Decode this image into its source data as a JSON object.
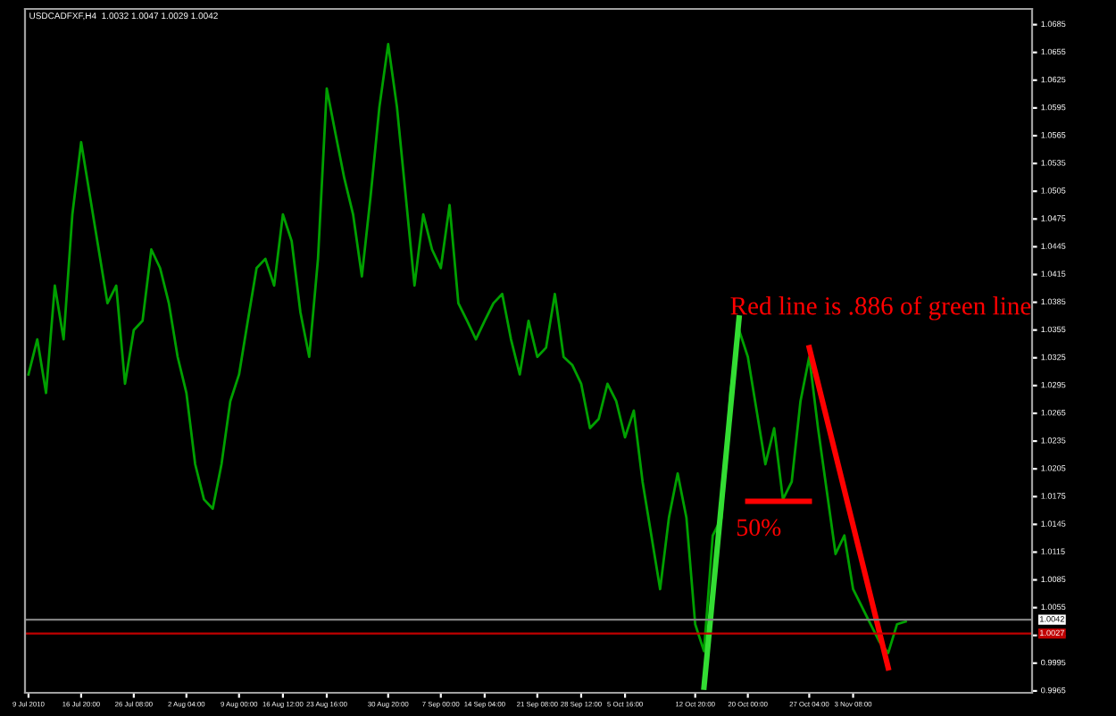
{
  "chart_data": {
    "type": "line",
    "title": "USDCADFXF,H4  1.0032 1.0047 1.0029 1.0042",
    "grid": false,
    "legend": false,
    "marker": "none",
    "line_style": "solid",
    "categories": [
      "9 Jul 2010",
      null,
      null,
      null,
      null,
      null,
      "16 Jul 20:00",
      null,
      null,
      null,
      null,
      null,
      "26 Jul 08:00",
      null,
      null,
      null,
      null,
      null,
      "2 Aug 04:00",
      null,
      null,
      null,
      null,
      null,
      "9 Aug 00:00",
      null,
      null,
      null,
      null,
      "16 Aug 12:00",
      null,
      null,
      null,
      null,
      "23 Aug 16:00",
      null,
      null,
      null,
      null,
      null,
      null,
      "30 Aug 20:00",
      null,
      null,
      null,
      null,
      null,
      "7 Sep 00:00",
      null,
      null,
      null,
      null,
      "14 Sep 04:00",
      null,
      null,
      null,
      null,
      null,
      "21 Sep 08:00",
      null,
      null,
      null,
      null,
      "28 Sep 12:00",
      null,
      null,
      null,
      null,
      "5 Oct 16:00",
      null,
      null,
      null,
      null,
      null,
      null,
      null,
      "12 Oct 20:00",
      null,
      null,
      null,
      null,
      null,
      "20 Oct 00:00",
      null,
      null,
      null,
      null,
      null,
      null,
      "27 Oct 04:00",
      null,
      null,
      null,
      null,
      "3 Nov 08:00",
      null,
      null,
      null,
      null,
      null,
      null,
      null,
      null,
      null,
      null,
      null,
      null,
      null,
      null,
      null,
      null,
      null,
      null,
      null,
      null
    ],
    "ylim": [
      0.9963,
      1.0702
    ],
    "yticks": [
      1.0685,
      1.0655,
      1.0625,
      1.0595,
      1.0565,
      1.0535,
      1.0505,
      1.0475,
      1.0445,
      1.0415,
      1.0385,
      1.0355,
      1.0325,
      1.0295,
      1.0265,
      1.0235,
      1.0205,
      1.0175,
      1.0145,
      1.0115,
      1.0085,
      1.0055,
      1.0025,
      0.9995,
      0.9965
    ],
    "series": [
      {
        "color": "#00a000",
        "values": [
          1.0307,
          1.0345,
          1.0287,
          1.0403,
          1.0345,
          1.048,
          1.0558,
          1.05,
          1.0442,
          1.0384,
          1.0403,
          1.0297,
          1.0355,
          1.0365,
          1.0442,
          1.0422,
          1.0384,
          1.0326,
          1.0287,
          1.021,
          1.0172,
          1.0162,
          1.021,
          1.0278,
          1.0307,
          1.0365,
          1.0422,
          1.0432,
          1.0403,
          1.048,
          1.0451,
          1.0374,
          1.0326,
          1.0432,
          1.0616,
          1.0567,
          1.0519,
          1.048,
          1.0413,
          1.05,
          1.0596,
          1.0664,
          1.0596,
          1.05,
          1.0403,
          1.048,
          1.0442,
          1.0422,
          1.049,
          1.0384,
          1.0365,
          1.0345,
          1.0365,
          1.0384,
          1.0394,
          1.0345,
          1.0307,
          1.0365,
          1.0326,
          1.0336,
          1.0394,
          1.0326,
          1.0317,
          1.0297,
          1.0249,
          1.0259,
          1.0297,
          1.0278,
          1.0239,
          1.0268,
          1.0191,
          1.0133,
          1.0075,
          1.0152,
          1.02,
          1.0152,
          1.0037,
          1.0008,
          1.0133,
          1.0152,
          1.0287,
          1.0355,
          1.0326,
          1.0268,
          1.021,
          1.0249,
          1.0172,
          1.0191,
          1.0278,
          1.0326,
          1.0249,
          1.0181,
          1.0113,
          1.0133,
          1.0075,
          1.0056,
          1.0037,
          1.0018,
          1.0006,
          1.0037,
          1.004,
          null,
          null,
          null,
          null,
          null,
          null,
          null,
          null,
          null,
          null,
          null,
          null,
          null,
          null
        ]
      },
      {
        "color": "#33dd33",
        "values": [
          null,
          null,
          null,
          null,
          null,
          null,
          null,
          null,
          null,
          null,
          null,
          null,
          null,
          null,
          null,
          null,
          null,
          null,
          null,
          null,
          null,
          null,
          null,
          null,
          null,
          null,
          null,
          null,
          null,
          null,
          null,
          null,
          null,
          null,
          null,
          null,
          null,
          null,
          null,
          null,
          null,
          null,
          null,
          null,
          null,
          null,
          null,
          null,
          null,
          null,
          null,
          null,
          null,
          null,
          null,
          null,
          null,
          null,
          null,
          null,
          null,
          null,
          null,
          null,
          null,
          null,
          null,
          null,
          null,
          null,
          null,
          null,
          null,
          null,
          null,
          null,
          null,
          0.9969,
          null,
          null,
          null,
          1.0368,
          null,
          null,
          null,
          null,
          null,
          null,
          null,
          null,
          null,
          null,
          null,
          null,
          null,
          null,
          null,
          null,
          null,
          null,
          null,
          null,
          null,
          null,
          null,
          null,
          null,
          null,
          null,
          null,
          null,
          null,
          null,
          null,
          null
        ]
      },
      {
        "color": "#ff0000",
        "values": [
          null,
          null,
          null,
          null,
          null,
          null,
          null,
          null,
          null,
          null,
          null,
          null,
          null,
          null,
          null,
          null,
          null,
          null,
          null,
          null,
          null,
          null,
          null,
          null,
          null,
          null,
          null,
          null,
          null,
          null,
          null,
          null,
          null,
          null,
          null,
          null,
          null,
          null,
          null,
          null,
          null,
          null,
          null,
          null,
          null,
          null,
          null,
          null,
          null,
          null,
          null,
          null,
          null,
          null,
          null,
          null,
          null,
          null,
          null,
          null,
          null,
          null,
          null,
          null,
          null,
          null,
          null,
          null,
          null,
          null,
          null,
          null,
          null,
          null,
          null,
          null,
          null,
          null,
          null,
          null,
          null,
          null,
          null,
          null,
          null,
          null,
          null,
          null,
          null,
          1.0336,
          null,
          null,
          null,
          null,
          null,
          null,
          null,
          null,
          0.999,
          null,
          null,
          null,
          null,
          null,
          null,
          null,
          null,
          null,
          null,
          null,
          null,
          null,
          null,
          null,
          null
        ]
      },
      {
        "color": "#ff0000",
        "values": [
          null,
          null,
          null,
          null,
          null,
          null,
          null,
          null,
          null,
          null,
          null,
          null,
          null,
          null,
          null,
          null,
          null,
          null,
          null,
          null,
          null,
          null,
          null,
          null,
          null,
          null,
          null,
          null,
          null,
          null,
          null,
          null,
          null,
          null,
          null,
          null,
          null,
          null,
          null,
          null,
          null,
          null,
          null,
          null,
          null,
          null,
          null,
          null,
          null,
          null,
          null,
          null,
          null,
          null,
          null,
          null,
          null,
          null,
          null,
          null,
          null,
          null,
          null,
          null,
          null,
          null,
          null,
          null,
          null,
          null,
          null,
          null,
          null,
          null,
          null,
          null,
          null,
          null,
          null,
          null,
          null,
          null,
          1.017,
          null,
          null,
          null,
          null,
          null,
          null,
          1.017,
          null,
          null,
          null,
          null,
          null,
          null,
          null,
          null,
          null,
          null,
          null,
          null,
          null,
          null,
          null,
          null,
          null,
          null,
          null,
          null,
          null,
          null,
          null,
          null,
          null
        ]
      }
    ],
    "ref_lines": [
      {
        "axis": "y",
        "value": 1.0042,
        "label": "1.0042",
        "color": "#808080"
      },
      {
        "axis": "y",
        "value": 1.0027,
        "label": "1.0027",
        "color": "#c00000"
      }
    ],
    "annotations": [
      "Red line is .886 of green line",
      "50%"
    ]
  }
}
